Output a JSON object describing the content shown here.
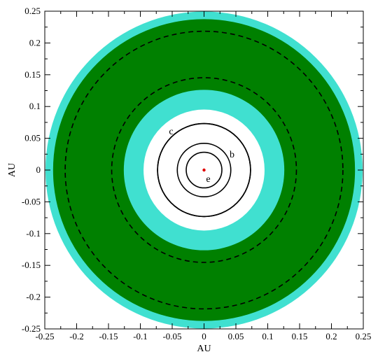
{
  "chart_data": {
    "type": "scatter",
    "title": "",
    "xlabel": "AU",
    "ylabel": "AU",
    "xlim": [
      -0.25,
      0.25
    ],
    "ylim": [
      -0.25,
      0.25
    ],
    "xticks": [
      -0.25,
      -0.2,
      -0.15,
      -0.1,
      -0.05,
      0,
      0.05,
      0.1,
      0.15,
      0.2,
      0.25
    ],
    "xtick_labels": [
      "-0.25",
      "-0.2",
      "-0.15",
      "-0.1",
      "-0.05",
      "0",
      "0.05",
      "0.1",
      "0.15",
      "0.2",
      "0.25"
    ],
    "yticks": [
      -0.25,
      -0.2,
      -0.15,
      -0.1,
      -0.05,
      0,
      0.05,
      0.1,
      0.15,
      0.2,
      0.25
    ],
    "ytick_labels": [
      "-0.25",
      "-0.2",
      "-0.15",
      "-0.1",
      "-0.05",
      "0",
      "0.05",
      "0.1",
      "0.15",
      "0.2",
      "0.25"
    ],
    "grid": false,
    "colors": {
      "optimistic_zone": "#40e0d0",
      "conservative_zone": "#008000",
      "star": "#e00000",
      "orbit": "#000000"
    },
    "zones": [
      {
        "name": "optimistic",
        "inner_radius": 0.126,
        "outer_radius": 0.25
      },
      {
        "name": "conservative",
        "inner_radius": 0.126,
        "outer_radius": 0.237
      }
    ],
    "dashed_circles": [
      0.145,
      0.218
    ],
    "orbits": [
      {
        "label": "e",
        "radius": 0.028
      },
      {
        "label": "",
        "radius": 0.042
      },
      {
        "label": "b",
        "radius": 0.073
      },
      {
        "label": "c",
        "radius": 0.0
      }
    ],
    "star": {
      "x": 0,
      "y": 0
    }
  }
}
